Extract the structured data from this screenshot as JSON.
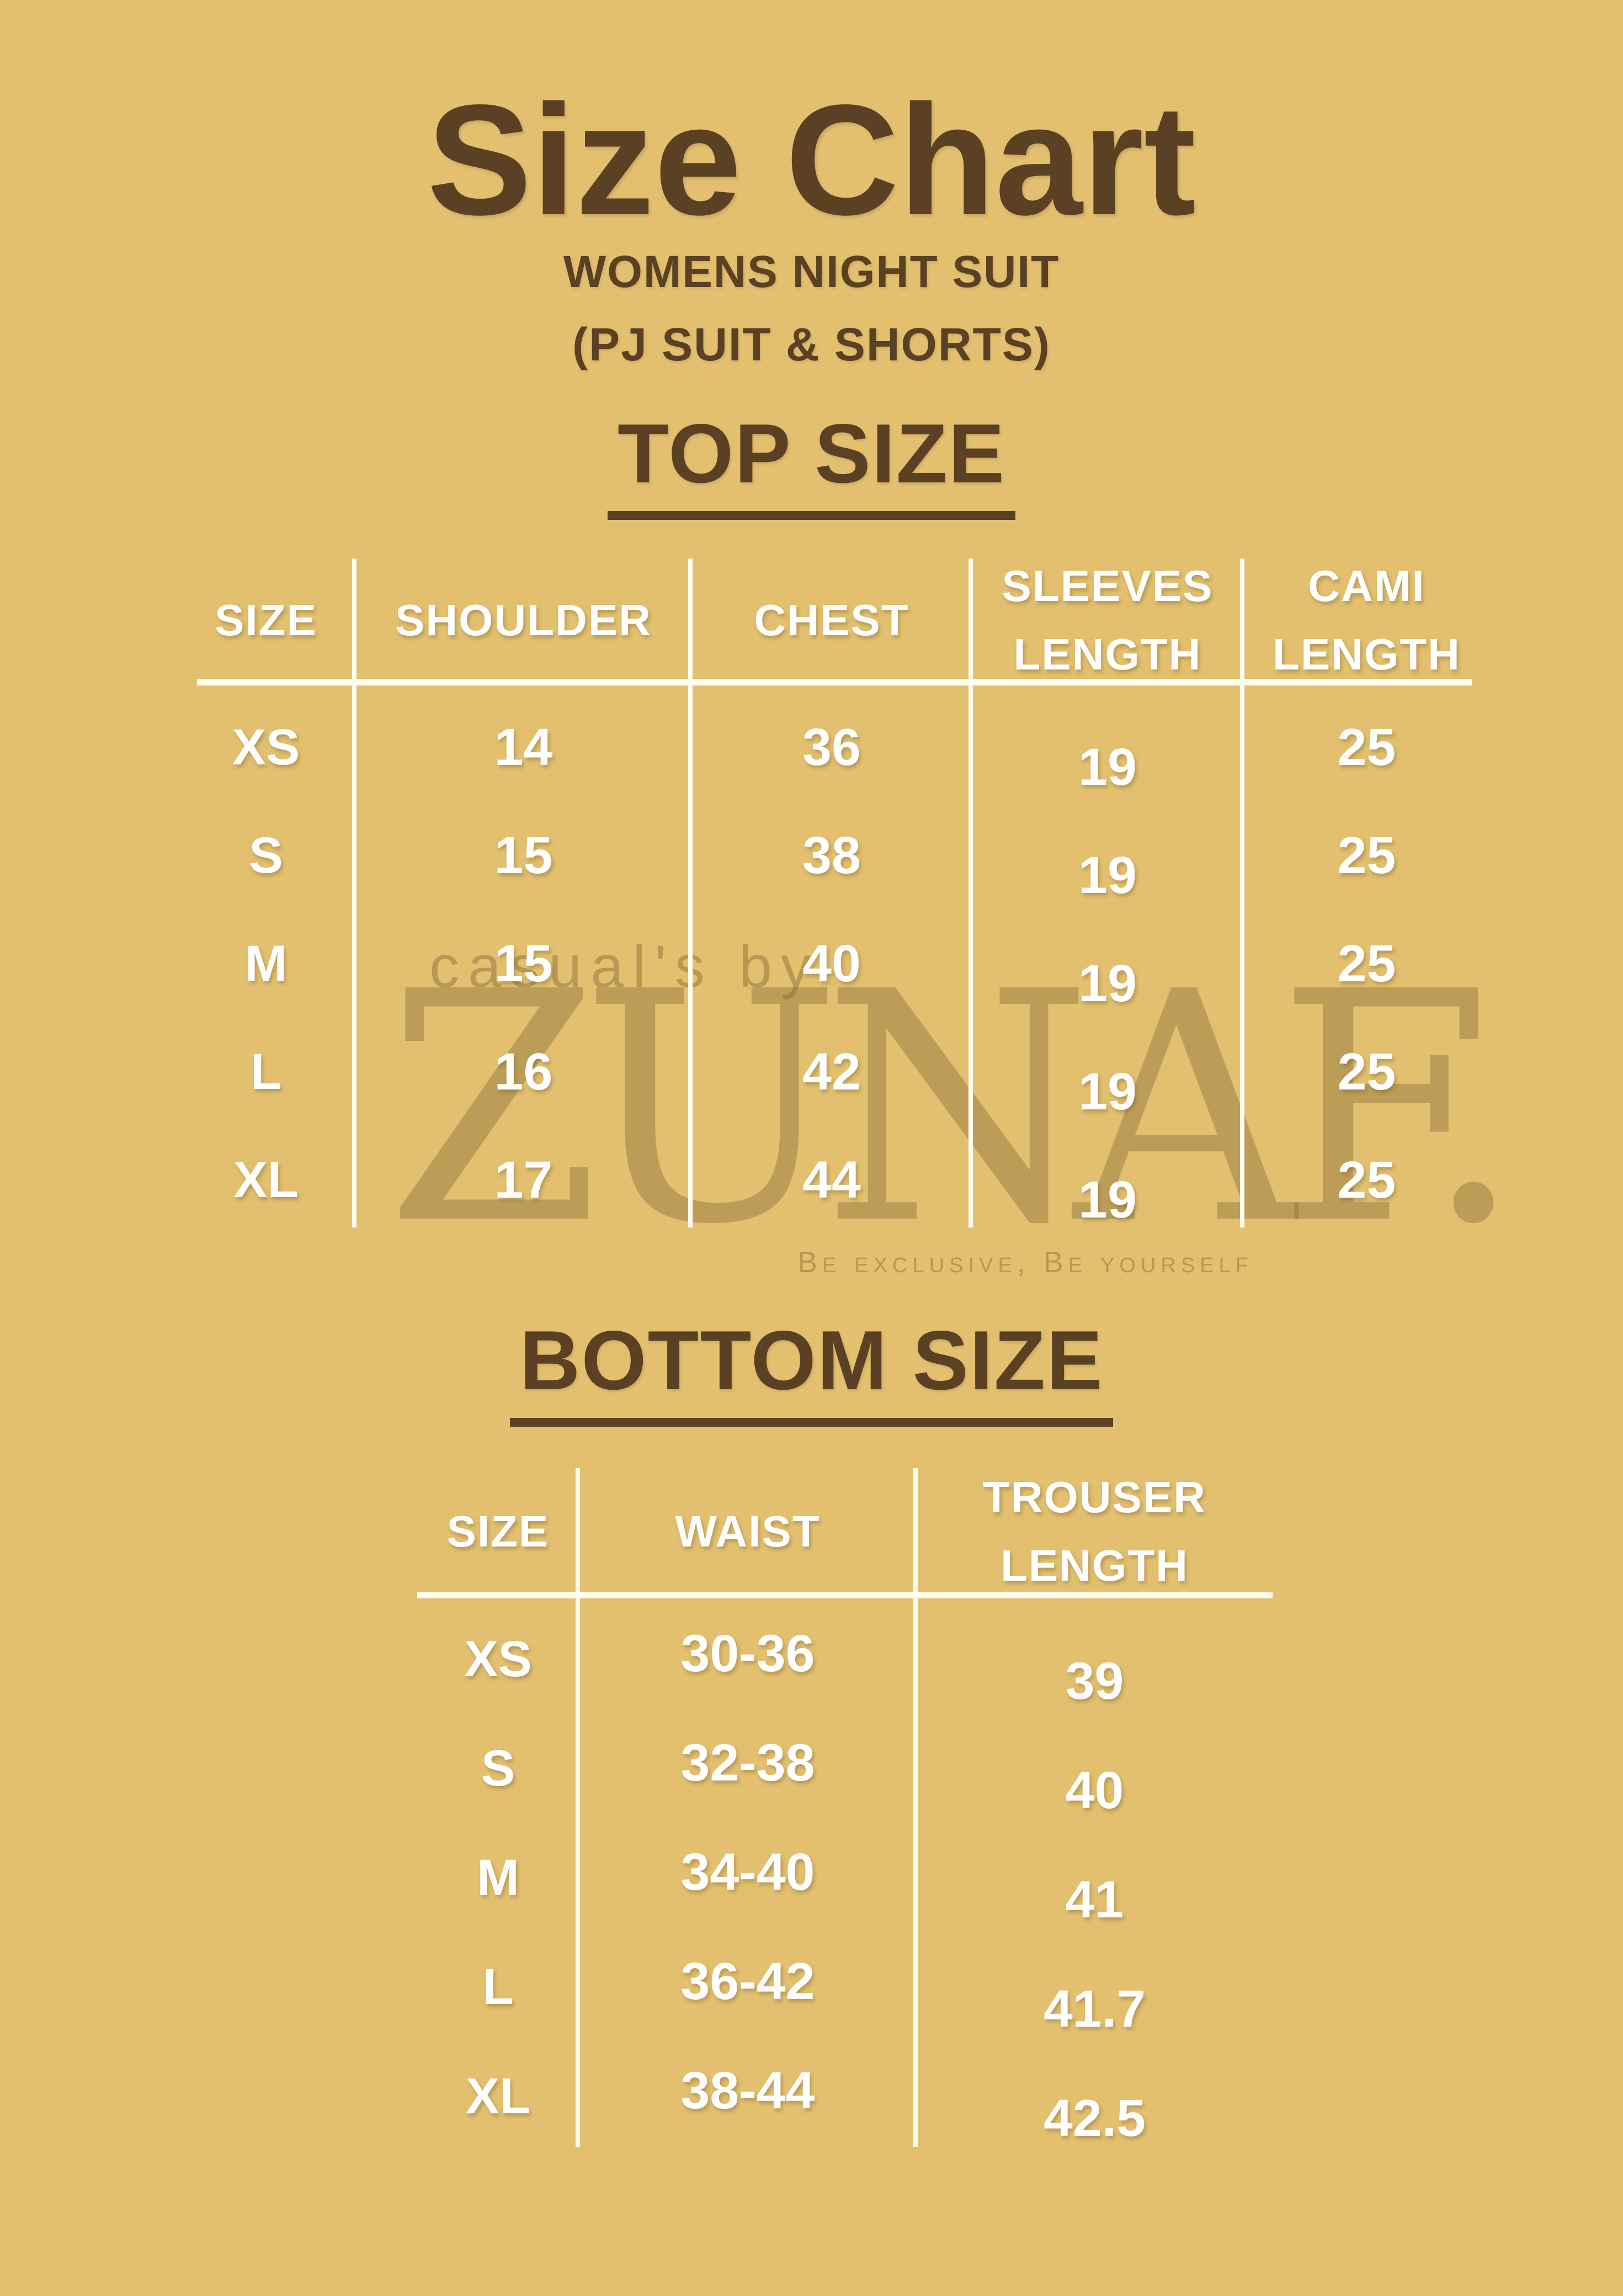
{
  "page": {
    "title": "Size Chart",
    "subtitle_line1": "WOMENS NIGHT SUIT",
    "subtitle_line2": "(PJ SUIT & SHORTS)"
  },
  "colors": {
    "background": "#e2c06f",
    "heading_brown": "#5a4124",
    "table_text": "#ffffff",
    "rule_line": "#fffdf0",
    "watermark": "#85683580"
  },
  "watermark": {
    "pre": "casual's by",
    "brand": "ZUNAF.",
    "tagline": "Be exclusive, Be yourself"
  },
  "top_table": {
    "heading": "TOP SIZE",
    "columns": [
      "SIZE",
      "SHOULDER",
      "CHEST",
      "SLEEVES LENGTH",
      "CAMI LENGTH"
    ],
    "rows": [
      {
        "label": "XS",
        "values": [
          "14",
          "36",
          "19",
          "25"
        ]
      },
      {
        "label": "S",
        "values": [
          "15",
          "38",
          "19",
          "25"
        ]
      },
      {
        "label": "M",
        "values": [
          "15",
          "40",
          "19",
          "25"
        ]
      },
      {
        "label": "L",
        "values": [
          "16",
          "42",
          "19",
          "25"
        ]
      },
      {
        "label": "XL",
        "values": [
          "17",
          "44",
          "19",
          "25"
        ]
      }
    ]
  },
  "bottom_table": {
    "heading": "BOTTOM SIZE",
    "columns": [
      "SIZE",
      "WAIST",
      "TROUSER LENGTH"
    ],
    "rows": [
      {
        "label": "XS",
        "values": [
          "30-36",
          "39"
        ]
      },
      {
        "label": "S",
        "values": [
          "32-38",
          "40"
        ]
      },
      {
        "label": "M",
        "values": [
          "34-40",
          "41"
        ]
      },
      {
        "label": "L",
        "values": [
          "36-42",
          "41.7"
        ]
      },
      {
        "label": "XL",
        "values": [
          "38-44",
          "42.5"
        ]
      }
    ]
  }
}
